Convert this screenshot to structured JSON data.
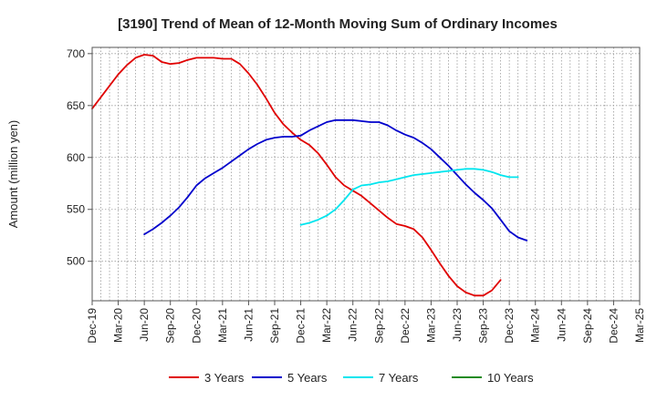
{
  "chart_data": {
    "type": "line",
    "title": "[3190]  Trend of Mean of 12-Month Moving Sum of Ordinary Incomes",
    "xlabel": "",
    "ylabel": "Amount (million yen)",
    "ylim": [
      462,
      706
    ],
    "yticks": [
      500,
      550,
      600,
      650,
      700
    ],
    "x_categories": [
      "Dec-19",
      "Mar-20",
      "Jun-20",
      "Sep-20",
      "Dec-20",
      "Mar-21",
      "Jun-21",
      "Sep-21",
      "Dec-21",
      "Mar-22",
      "Jun-22",
      "Sep-22",
      "Dec-22",
      "Mar-23",
      "Jun-23",
      "Sep-23",
      "Dec-23",
      "Mar-24",
      "Jun-24",
      "Sep-24",
      "Dec-24",
      "Mar-25"
    ],
    "grid": true,
    "legend_position": "bottom",
    "series": [
      {
        "name": "3 Years",
        "color": "#e00000",
        "start_index": 0,
        "values": [
          647,
          658,
          669,
          680,
          689,
          696,
          699,
          698,
          692,
          690,
          691,
          694,
          696,
          696,
          696,
          695,
          695,
          690,
          681,
          670,
          657,
          643,
          632,
          624,
          617,
          612,
          604,
          593,
          581,
          573,
          568,
          563,
          556,
          549,
          542,
          536,
          534,
          531,
          523,
          511,
          498,
          486,
          476,
          470,
          467,
          467,
          472,
          482
        ]
      },
      {
        "name": "5 Years",
        "color": "#0000cc",
        "start_index": 6,
        "values": [
          526,
          531,
          537,
          544,
          552,
          562,
          573,
          580,
          585,
          590,
          596,
          602,
          608,
          613,
          617,
          619,
          620,
          620,
          621,
          626,
          630,
          634,
          636,
          636,
          636,
          635,
          634,
          634,
          631,
          626,
          622,
          619,
          614,
          608,
          600,
          592,
          583,
          574,
          566,
          559,
          551,
          540,
          529,
          523,
          520
        ]
      },
      {
        "name": "7 Years",
        "color": "#00e5ee",
        "start_index": 24,
        "values": [
          535,
          537,
          540,
          544,
          550,
          559,
          569,
          573,
          574,
          576,
          577,
          579,
          581,
          583,
          584,
          585,
          586,
          587,
          588,
          589,
          589,
          588,
          586,
          583,
          581,
          581
        ]
      },
      {
        "name": "10 Years",
        "color": "#228b22",
        "start_index": 0,
        "values": []
      }
    ]
  }
}
